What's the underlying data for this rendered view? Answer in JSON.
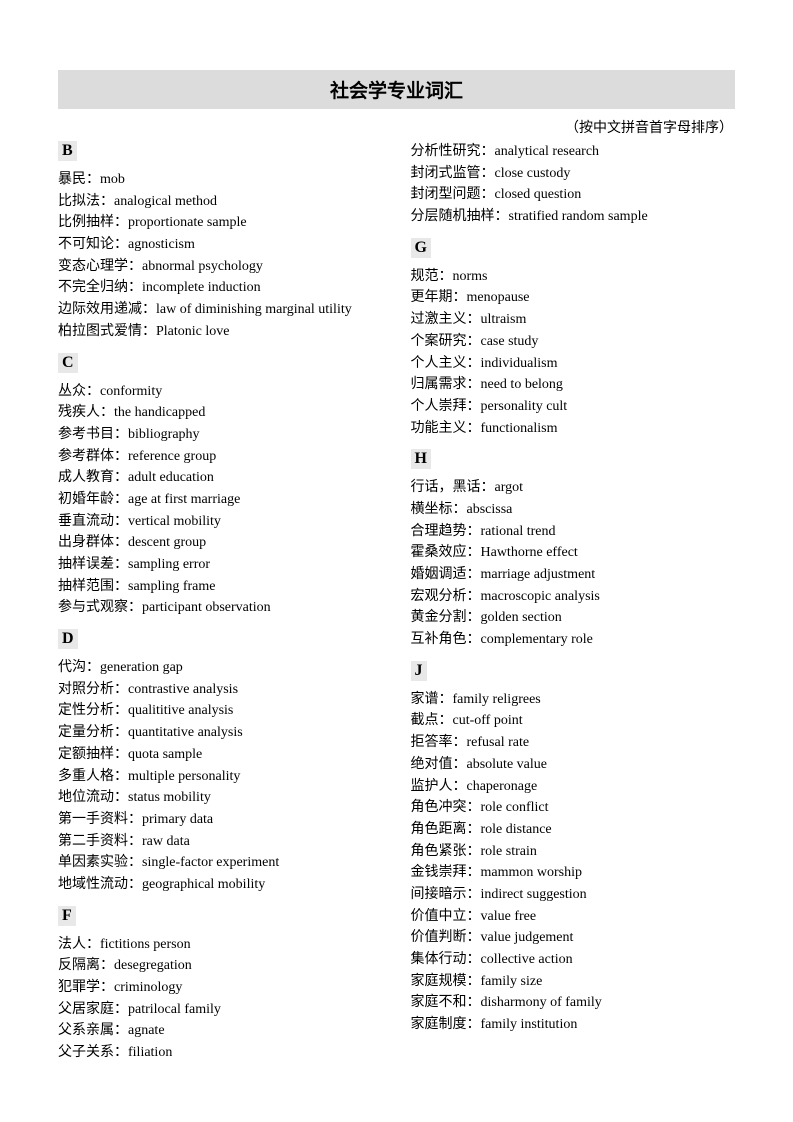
{
  "title": "社会学专业词汇",
  "subtitle": "（按中文拼音首字母排序）",
  "sections": [
    {
      "letter": "B",
      "entries": [
        {
          "cn": "暴民：",
          "en": "mob"
        },
        {
          "cn": "比拟法：",
          "en": "analogical method"
        },
        {
          "cn": "比例抽样：",
          "en": "proportionate sample"
        },
        {
          "cn": "不可知论：",
          "en": "agnosticism"
        },
        {
          "cn": "变态心理学：",
          "en": "abnormal psychology"
        },
        {
          "cn": "不完全归纳：",
          "en": "incomplete induction"
        },
        {
          "cn": "边际效用递减：",
          "en": "law of diminishing marginal utility"
        },
        {
          "cn": "柏拉图式爱情：",
          "en": "Platonic love"
        }
      ]
    },
    {
      "letter": "C",
      "entries": [
        {
          "cn": "丛众：",
          "en": "conformity"
        },
        {
          "cn": "残疾人：",
          "en": "the handicapped"
        },
        {
          "cn": "参考书目：",
          "en": "bibliography"
        },
        {
          "cn": "参考群体：",
          "en": "reference group"
        },
        {
          "cn": "成人教育：",
          "en": "adult education"
        },
        {
          "cn": "初婚年龄：",
          "en": "age at first marriage"
        },
        {
          "cn": "垂直流动：",
          "en": "vertical mobility"
        },
        {
          "cn": "出身群体：",
          "en": "descent group"
        },
        {
          "cn": "抽样误差：",
          "en": "sampling error"
        },
        {
          "cn": "抽样范围：",
          "en": "sampling frame"
        },
        {
          "cn": "参与式观察：",
          "en": "participant observation"
        }
      ]
    },
    {
      "letter": "D",
      "entries": [
        {
          "cn": "代沟：",
          "en": "generation gap"
        },
        {
          "cn": "对照分析：",
          "en": "contrastive analysis"
        },
        {
          "cn": "定性分析：",
          "en": "qualititive analysis"
        },
        {
          "cn": "定量分析：",
          "en": "quantitative analysis"
        },
        {
          "cn": "定额抽样：",
          "en": "quota sample"
        },
        {
          "cn": "多重人格：",
          "en": "multiple personality"
        },
        {
          "cn": "地位流动：",
          "en": "status mobility"
        },
        {
          "cn": "第一手资料：",
          "en": "primary data"
        },
        {
          "cn": "第二手资料：",
          "en": "raw data"
        },
        {
          "cn": "单因素实验：",
          "en": "single-factor experiment"
        },
        {
          "cn": "地域性流动：",
          "en": "geographical mobility"
        }
      ]
    },
    {
      "letter": "F",
      "entries": [
        {
          "cn": "法人：",
          "en": "fictitions person"
        },
        {
          "cn": "反隔离：",
          "en": "desegregation"
        },
        {
          "cn": "犯罪学：",
          "en": "criminology"
        },
        {
          "cn": "父居家庭：",
          "en": "patrilocal family"
        },
        {
          "cn": "父系亲属：",
          "en": "agnate"
        },
        {
          "cn": "父子关系：",
          "en": "filiation"
        },
        {
          "cn": "分析性研究：",
          "en": "analytical research"
        },
        {
          "cn": "封闭式监管：",
          "en": "close custody"
        },
        {
          "cn": "封闭型问题：",
          "en": "closed question"
        },
        {
          "cn": "分层随机抽样：",
          "en": "stratified random sample"
        }
      ]
    },
    {
      "letter": "G",
      "entries": [
        {
          "cn": "规范：",
          "en": "norms"
        },
        {
          "cn": "更年期：",
          "en": "menopause"
        },
        {
          "cn": "过激主义：",
          "en": "ultraism"
        },
        {
          "cn": "个案研究：",
          "en": "case study"
        },
        {
          "cn": "个人主义：",
          "en": "individualism"
        },
        {
          "cn": "归属需求：",
          "en": "need to belong"
        },
        {
          "cn": "个人崇拜：",
          "en": "personality cult"
        },
        {
          "cn": "功能主义：",
          "en": "functionalism"
        }
      ]
    },
    {
      "letter": "H",
      "entries": [
        {
          "cn": "行话，黑话：",
          "en": "argot"
        },
        {
          "cn": "横坐标：",
          "en": "abscissa"
        },
        {
          "cn": "合理趋势：",
          "en": "rational trend"
        },
        {
          "cn": "霍桑效应：",
          "en": "Hawthorne effect"
        },
        {
          "cn": "婚姻调适：",
          "en": "marriage adjustment"
        },
        {
          "cn": "宏观分析：",
          "en": "macroscopic analysis"
        },
        {
          "cn": "黄金分割：",
          "en": "golden section"
        },
        {
          "cn": "互补角色：",
          "en": "complementary role"
        }
      ]
    },
    {
      "letter": "J",
      "entries": [
        {
          "cn": "家谱：",
          "en": "family religrees"
        },
        {
          "cn": "截点：",
          "en": "cut-off point"
        },
        {
          "cn": "拒答率：",
          "en": "refusal rate"
        },
        {
          "cn": "绝对值：",
          "en": "absolute value"
        },
        {
          "cn": "监护人：",
          "en": "chaperonage"
        },
        {
          "cn": "角色冲突：",
          "en": "role conflict"
        },
        {
          "cn": "角色距离：",
          "en": "role distance"
        },
        {
          "cn": "角色紧张：",
          "en": "role strain"
        },
        {
          "cn": "金钱崇拜：",
          "en": "mammon worship"
        },
        {
          "cn": "间接暗示：",
          "en": "indirect suggestion"
        },
        {
          "cn": "价值中立：",
          "en": "value free"
        },
        {
          "cn": "价值判断：",
          "en": "value judgement"
        },
        {
          "cn": "集体行动：",
          "en": "collective action"
        },
        {
          "cn": "家庭规模：",
          "en": "family size"
        },
        {
          "cn": "家庭不和：",
          "en": "disharmony of family"
        },
        {
          "cn": "家庭制度：",
          "en": "family institution"
        }
      ]
    }
  ]
}
